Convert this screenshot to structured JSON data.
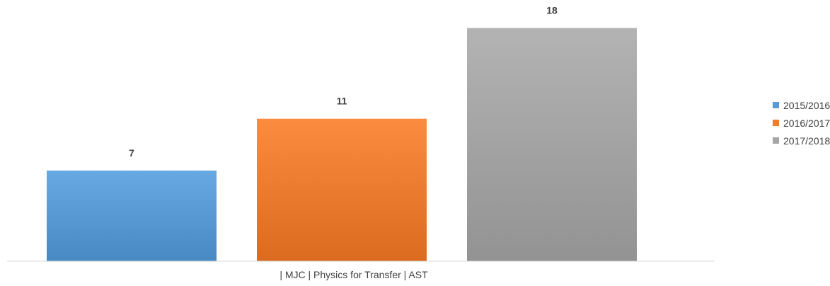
{
  "chart_data": {
    "type": "bar",
    "categories": [
      "| MJC | Physics for Transfer | AST"
    ],
    "series": [
      {
        "name": "2015/2016",
        "values": [
          7
        ],
        "color": "#5b9bd5"
      },
      {
        "name": "2016/2017",
        "values": [
          11
        ],
        "color": "#ed7d31"
      },
      {
        "name": "2017/2018",
        "values": [
          18
        ],
        "color": "#a5a5a5"
      }
    ],
    "ylim": [
      0,
      20
    ],
    "grid": false,
    "legend_position": "right",
    "data_labels": true
  }
}
